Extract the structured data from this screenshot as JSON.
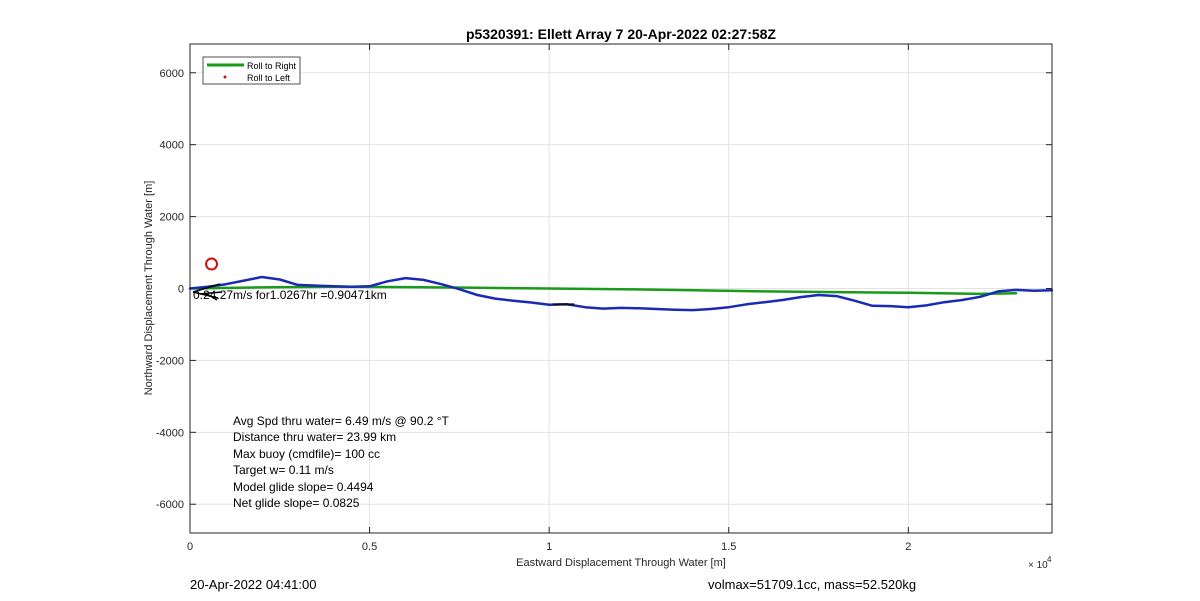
{
  "chart_data": {
    "type": "line",
    "title": "p5320391: Ellett Array 7 20-Apr-2022 02:27:58Z",
    "xlabel": "Eastward Displacement Through Water [m]",
    "ylabel": "Northward Displacement Through Water [m]",
    "xlim": [
      0,
      24000
    ],
    "ylim": [
      -6800,
      6800
    ],
    "x_ticks": [
      0,
      5000,
      10000,
      15000,
      20000
    ],
    "x_tick_labels": [
      "0",
      "0.5",
      "1",
      "1.5",
      "2"
    ],
    "x_exponent_label": "× 10",
    "x_exponent_power": "4",
    "y_ticks": [
      -6000,
      -4000,
      -2000,
      0,
      2000,
      4000,
      6000
    ],
    "y_tick_labels": [
      "-6000",
      "-4000",
      "-2000",
      "0",
      "2000",
      "4000",
      "6000"
    ],
    "grid": true,
    "legend_position": "top-left",
    "legend": [
      {
        "label": "Roll to Right",
        "color": "#1a9a1a",
        "marker": "line"
      },
      {
        "label": "Roll to Left",
        "color": "#d01010",
        "marker": "dot"
      }
    ],
    "series": [
      {
        "name": "Roll to Right",
        "color": "#1a9a1a",
        "x": [
          0,
          2000,
          4000,
          6000,
          8000,
          10000,
          12000,
          14000,
          16000,
          18000,
          20000,
          22000,
          23000
        ],
        "y": [
          0,
          30,
          50,
          40,
          20,
          0,
          -20,
          -50,
          -80,
          -100,
          -120,
          -150,
          -130
        ]
      },
      {
        "name": "",
        "color": "#1a2ab5",
        "x": [
          0,
          500,
          1000,
          1500,
          2000,
          2500,
          3000,
          3500,
          4000,
          4500,
          5000,
          5500,
          6000,
          6500,
          7000,
          7500,
          8000,
          8500,
          9000,
          9500,
          10000,
          10500,
          11000,
          11500,
          12000,
          12500,
          13000,
          13500,
          14000,
          14500,
          15000,
          15500,
          16000,
          16500,
          17000,
          17500,
          18000,
          18500,
          19000,
          19500,
          20000,
          20500,
          21000,
          21500,
          22000,
          22500,
          23000,
          23500,
          24000
        ],
        "y": [
          0,
          50,
          120,
          220,
          320,
          250,
          100,
          80,
          60,
          50,
          60,
          200,
          290,
          240,
          120,
          -20,
          -180,
          -280,
          -340,
          -390,
          -450,
          -440,
          -520,
          -560,
          -540,
          -550,
          -570,
          -590,
          -600,
          -570,
          -520,
          -440,
          -380,
          -320,
          -240,
          -180,
          -210,
          -340,
          -480,
          -490,
          -520,
          -470,
          -380,
          -320,
          -230,
          -80,
          -40,
          -60,
          -50
        ]
      }
    ],
    "markers": [
      {
        "type": "circle",
        "color": "#cc1010",
        "x": 600,
        "y": 680
      }
    ],
    "annotations": {
      "arrow_label": "0.24.27m/s for1.0267hr =0.90471km",
      "stats": [
        "Avg Spd thru water=  6.49 m/s @  90.2 °T",
        "Distance thru water= 23.99 km",
        "Max buoy (cmdfile)= 100 cc",
        "Target w= 0.11 m/s",
        "Model glide slope= 0.4494",
        "Net glide slope= 0.0825"
      ]
    }
  },
  "footer": {
    "left": "20-Apr-2022 04:41:00",
    "right": "volmax=51709.1cc, mass=52.520kg"
  }
}
